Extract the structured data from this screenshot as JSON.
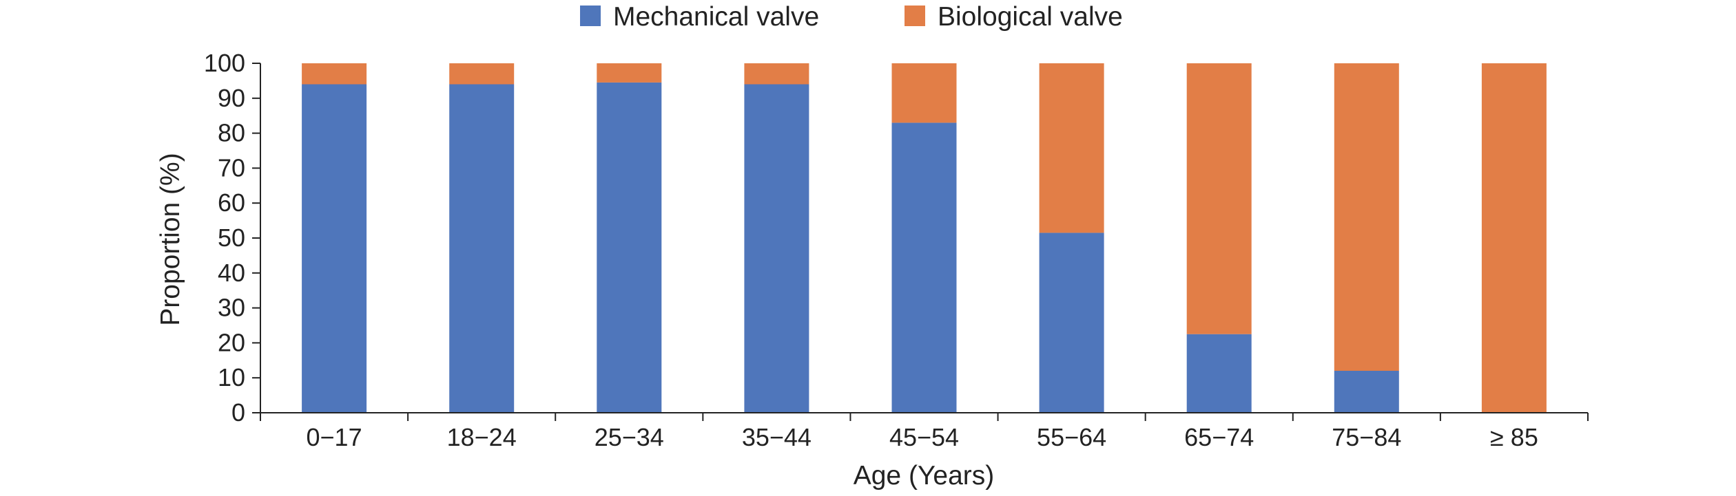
{
  "chart_data": {
    "type": "bar",
    "stacked": true,
    "title": "",
    "xlabel": "Age (Years)",
    "ylabel": "Proportion (%)",
    "ylim": [
      0,
      100
    ],
    "yticks": [
      "0",
      "10",
      "20",
      "30",
      "40",
      "50",
      "60",
      "70",
      "80",
      "90",
      "100"
    ],
    "categories": [
      "0−17",
      "18−24",
      "25−34",
      "35−44",
      "45−54",
      "55−64",
      "65−74",
      "75−84",
      "≥ 85"
    ],
    "series": [
      {
        "name": "Mechanical valve",
        "color": "#4F76BB",
        "values": [
          94,
          94,
          94.5,
          94,
          83,
          51.5,
          22.5,
          12,
          0
        ]
      },
      {
        "name": "Biological valve",
        "color": "#E27E47",
        "values": [
          6,
          6,
          5.5,
          6,
          17,
          48.5,
          77.5,
          88,
          100
        ]
      }
    ],
    "grid": false,
    "legend_position": "top"
  }
}
